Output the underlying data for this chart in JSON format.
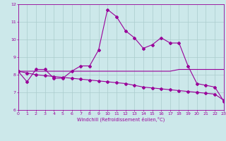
{
  "xlabel": "Windchill (Refroidissement éolien,°C)",
  "background_color": "#cce8ea",
  "grid_color": "#aacccc",
  "line_color": "#990099",
  "x": [
    0,
    1,
    2,
    3,
    4,
    5,
    6,
    7,
    8,
    9,
    10,
    11,
    12,
    13,
    14,
    15,
    16,
    17,
    18,
    19,
    20,
    21,
    22,
    23
  ],
  "line1": [
    8.2,
    7.6,
    8.3,
    8.3,
    7.8,
    7.8,
    8.2,
    8.5,
    8.5,
    9.4,
    11.7,
    11.3,
    10.5,
    10.1,
    9.5,
    9.7,
    10.1,
    9.8,
    9.8,
    8.5,
    7.5,
    7.4,
    7.3,
    6.5
  ],
  "line2": [
    8.2,
    8.2,
    8.2,
    8.2,
    8.2,
    8.2,
    8.2,
    8.2,
    8.2,
    8.2,
    8.2,
    8.2,
    8.2,
    8.2,
    8.2,
    8.2,
    8.2,
    8.2,
    8.3,
    8.3,
    8.3,
    8.3,
    8.3,
    8.3
  ],
  "line3": [
    8.2,
    8.1,
    8.0,
    7.95,
    7.9,
    7.85,
    7.8,
    7.75,
    7.7,
    7.65,
    7.6,
    7.55,
    7.5,
    7.4,
    7.3,
    7.25,
    7.2,
    7.15,
    7.1,
    7.05,
    7.0,
    6.95,
    6.9,
    6.55
  ],
  "ylim": [
    6,
    12
  ],
  "xlim": [
    0,
    23
  ],
  "yticks": [
    6,
    7,
    8,
    9,
    10,
    11,
    12
  ],
  "xticks": [
    0,
    1,
    2,
    3,
    4,
    5,
    6,
    7,
    8,
    9,
    10,
    11,
    12,
    13,
    14,
    15,
    16,
    17,
    18,
    19,
    20,
    21,
    22,
    23
  ]
}
